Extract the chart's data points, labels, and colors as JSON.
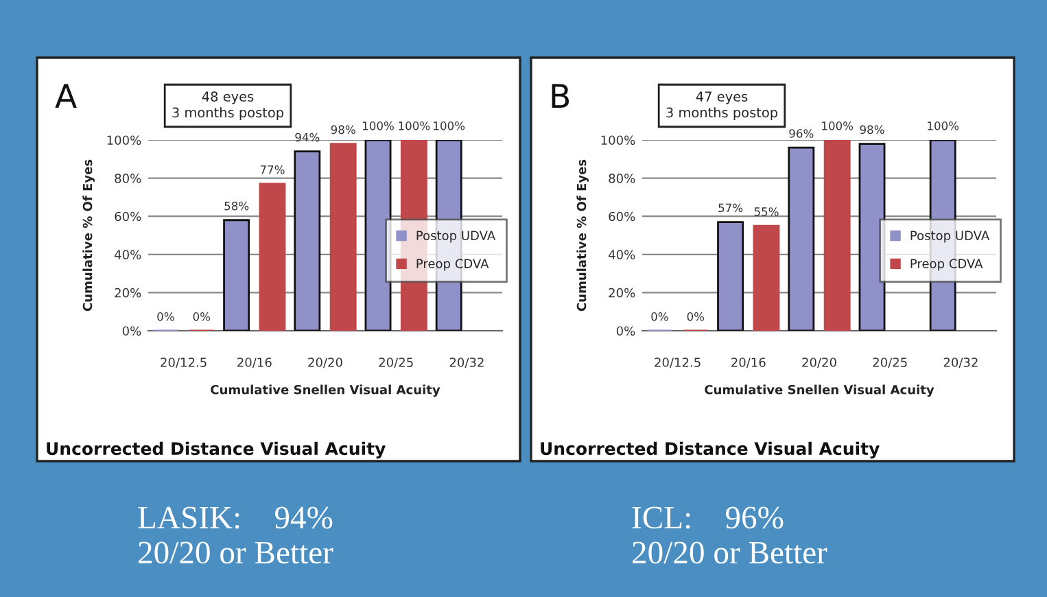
{
  "chart_data": [
    {
      "type": "bar",
      "title": "A",
      "categories": [
        "20/12.5",
        "20/16",
        "20/20",
        "20/25",
        "20/32"
      ],
      "xlabel": "Cumulative Snellen Visual Acuity",
      "ylabel": "Cumulative % Of Eyes",
      "series": [
        {
          "name": "Postop UDVA",
          "color": "#9191c9",
          "values": [
            0,
            58,
            94,
            100,
            100
          ],
          "value_labels": [
            "0%",
            "58%",
            "94%",
            "100%",
            "100%"
          ]
        },
        {
          "name": "Preop CDVA",
          "color": "#c0474a",
          "values": [
            0,
            77,
            98,
            100,
            null
          ],
          "value_labels": [
            "0%",
            "77%",
            "98%",
            "100%",
            null
          ]
        }
      ],
      "ylim": [
        0,
        100
      ],
      "yticks": [
        {
          "value": 0,
          "label": "0%"
        },
        {
          "value": 20,
          "label": "20%"
        },
        {
          "value": 40,
          "label": "40%"
        },
        {
          "value": 60,
          "label": "60%"
        },
        {
          "value": 80,
          "label": "80%"
        },
        {
          "value": 100,
          "label": "100%"
        }
      ],
      "grid": "y",
      "legend": "right",
      "annotations": [
        "48 eyes\n3 months postop",
        "Uncorrected Distance Visual Acuity",
        "LASIK:    94%\n20/20 or Better"
      ]
    },
    {
      "type": "bar",
      "title": "B",
      "categories": [
        "20/12.5",
        "20/16",
        "20/20",
        "20/25",
        "20/32"
      ],
      "xlabel": "Cumulative Snellen Visual Acuity",
      "ylabel": "Cumulative % Of Eyes",
      "series": [
        {
          "name": "Postop UDVA",
          "color": "#9191c9",
          "values": [
            0,
            57,
            96,
            98,
            100
          ],
          "value_labels": [
            "0%",
            "57%",
            "96%",
            "98%",
            "100%"
          ]
        },
        {
          "name": "Preop CDVA",
          "color": "#c0474a",
          "values": [
            0,
            55,
            100,
            null,
            null
          ],
          "value_labels": [
            "0%",
            "55%",
            "100%",
            null,
            null
          ]
        }
      ],
      "ylim": [
        0,
        100
      ],
      "yticks": [
        {
          "value": 0,
          "label": "0%"
        },
        {
          "value": 20,
          "label": "20%"
        },
        {
          "value": 40,
          "label": "40%"
        },
        {
          "value": 60,
          "label": "60%"
        },
        {
          "value": 80,
          "label": "80%"
        },
        {
          "value": 100,
          "label": "100%"
        }
      ],
      "grid": "y",
      "legend": "right",
      "annotations": [
        "47 eyes\n3 months postop",
        "Uncorrected Distance Visual Acuity",
        "ICL:    96%\n20/20 or Better"
      ]
    }
  ]
}
